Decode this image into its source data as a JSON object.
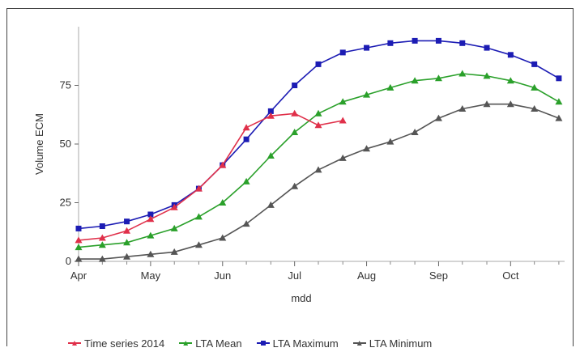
{
  "chart_data": {
    "type": "line",
    "title": "",
    "xlabel": "mdd",
    "ylabel": "Volume ECM",
    "ylim": [
      0,
      100
    ],
    "yticks": [
      0,
      25,
      50,
      75
    ],
    "xticks": [
      {
        "label": "Apr",
        "x": 0
      },
      {
        "label": "May",
        "x": 1
      },
      {
        "label": "Jun",
        "x": 2
      },
      {
        "label": "Jul",
        "x": 3
      },
      {
        "label": "Aug",
        "x": 4
      },
      {
        "label": "Sep",
        "x": 5
      },
      {
        "label": "Oct",
        "x": 6
      }
    ],
    "xlim": [
      0,
      6.75
    ],
    "legend_position": "bottom",
    "grid": false,
    "series": [
      {
        "name": "Time series 2014",
        "color": "#e0304a",
        "marker": "triangle",
        "x": [
          0,
          0.33,
          0.67,
          1,
          1.33,
          1.67,
          2,
          2.33,
          2.67,
          3,
          3.33,
          3.67
        ],
        "y": [
          9,
          10,
          13,
          18,
          23,
          31,
          41,
          57,
          62,
          63,
          58,
          60
        ]
      },
      {
        "name": "LTA Mean",
        "color": "#2aa02a",
        "marker": "triangle",
        "x": [
          0,
          0.33,
          0.67,
          1,
          1.33,
          1.67,
          2,
          2.33,
          2.67,
          3,
          3.33,
          3.67,
          4,
          4.33,
          4.67,
          5,
          5.33,
          5.67,
          6,
          6.33,
          6.67
        ],
        "y": [
          6,
          7,
          8,
          11,
          14,
          19,
          25,
          34,
          45,
          55,
          63,
          68,
          71,
          74,
          77,
          78,
          80,
          79,
          77,
          74,
          68
        ]
      },
      {
        "name": "LTA Maximum",
        "color": "#1c1cb4",
        "marker": "square",
        "x": [
          0,
          0.33,
          0.67,
          1,
          1.33,
          1.67,
          2,
          2.33,
          2.67,
          3,
          3.33,
          3.67,
          4,
          4.33,
          4.67,
          5,
          5.33,
          5.67,
          6,
          6.33,
          6.67
        ],
        "y": [
          14,
          15,
          17,
          20,
          24,
          31,
          41,
          52,
          64,
          75,
          84,
          89,
          91,
          93,
          94,
          94,
          93,
          91,
          88,
          84,
          78
        ]
      },
      {
        "name": "LTA Minimum",
        "color": "#555555",
        "marker": "triangle",
        "x": [
          0,
          0.33,
          0.67,
          1,
          1.33,
          1.67,
          2,
          2.33,
          2.67,
          3,
          3.33,
          3.67,
          4,
          4.33,
          4.67,
          5,
          5.33,
          5.67,
          6,
          6.33,
          6.67
        ],
        "y": [
          1,
          1,
          2,
          3,
          4,
          7,
          10,
          16,
          24,
          32,
          39,
          44,
          48,
          51,
          55,
          61,
          65,
          67,
          67,
          65,
          61
        ]
      }
    ]
  }
}
